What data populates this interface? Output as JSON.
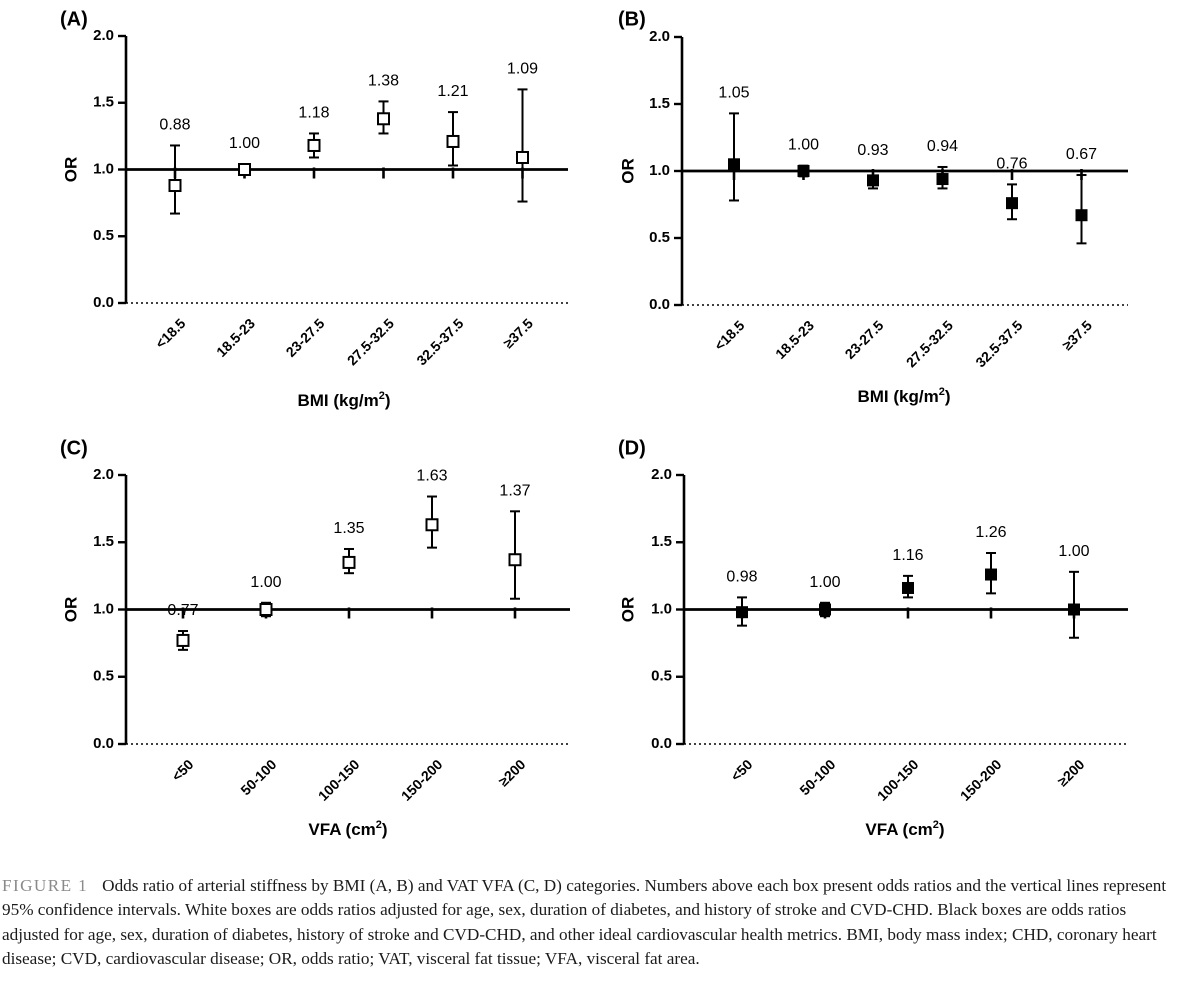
{
  "chart_data": [
    {
      "panel": "(A)",
      "type": "scatter",
      "marker": "open-square",
      "ylabel": "OR",
      "xlabel": "BMI (kg/m",
      "xlabel_sup": "2",
      "xlabel_suffix": ")",
      "categories": [
        "<18.5",
        "18.5-23",
        "23-27.5",
        "27.5-32.5",
        "32.5-37.5",
        "≥37.5"
      ],
      "values": [
        0.88,
        1.0,
        1.18,
        1.38,
        1.21,
        1.09
      ],
      "value_labels": [
        "0.88",
        "1.00",
        "1.18",
        "1.38",
        "1.21",
        "1.09"
      ],
      "ci_low": [
        0.67,
        0.96,
        1.09,
        1.27,
        1.03,
        0.76
      ],
      "ci_high": [
        1.18,
        1.04,
        1.27,
        1.51,
        1.43,
        1.6
      ],
      "ylim": [
        0,
        2
      ],
      "yticks": [
        "0.0",
        "0.5",
        "1.0",
        "1.5",
        "2.0"
      ],
      "reference_line": 1.0
    },
    {
      "panel": "(B)",
      "type": "scatter",
      "marker": "filled-square",
      "ylabel": "OR",
      "xlabel": "BMI (kg/m",
      "xlabel_sup": "2",
      "xlabel_suffix": ")",
      "categories": [
        "<18.5",
        "18.5-23",
        "23-27.5",
        "27.5-32.5",
        "32.5-37.5",
        "≥37.5"
      ],
      "values": [
        1.05,
        1.0,
        0.93,
        0.94,
        0.76,
        0.67
      ],
      "value_labels": [
        "1.05",
        "1.00",
        "0.93",
        "0.94",
        "0.76",
        "0.67"
      ],
      "ci_low": [
        0.78,
        0.96,
        0.87,
        0.87,
        0.64,
        0.46
      ],
      "ci_high": [
        1.43,
        1.04,
        1.0,
        1.03,
        0.9,
        0.97
      ],
      "ylim": [
        0,
        2
      ],
      "yticks": [
        "0.0",
        "0.5",
        "1.0",
        "1.5",
        "2.0"
      ],
      "reference_line": 1.0
    },
    {
      "panel": "(C)",
      "type": "scatter",
      "marker": "open-square",
      "ylabel": "OR",
      "xlabel": "VFA (cm",
      "xlabel_sup": "2",
      "xlabel_suffix": ")",
      "categories": [
        "<50",
        "50-100",
        "100-150",
        "150-200",
        "≥200"
      ],
      "values": [
        0.77,
        1.0,
        1.35,
        1.63,
        1.37
      ],
      "value_labels": [
        "0.77",
        "1.00",
        "1.35",
        "1.63",
        "1.37"
      ],
      "ci_low": [
        0.7,
        0.95,
        1.27,
        1.46,
        1.08
      ],
      "ci_high": [
        0.84,
        1.05,
        1.45,
        1.84,
        1.73
      ],
      "ylim": [
        0,
        2
      ],
      "yticks": [
        "0.0",
        "0.5",
        "1.0",
        "1.5",
        "2.0"
      ],
      "reference_line": 1.0
    },
    {
      "panel": "(D)",
      "type": "scatter",
      "marker": "filled-square",
      "ylabel": "OR",
      "xlabel": "VFA (cm",
      "xlabel_sup": "2",
      "xlabel_suffix": ")",
      "categories": [
        "<50",
        "50-100",
        "100-150",
        "150-200",
        "≥200"
      ],
      "values": [
        0.98,
        1.0,
        1.16,
        1.26,
        1.0
      ],
      "value_labels": [
        "0.98",
        "1.00",
        "1.16",
        "1.26",
        "1.00"
      ],
      "ci_low": [
        0.88,
        0.95,
        1.09,
        1.12,
        0.79
      ],
      "ci_high": [
        1.09,
        1.05,
        1.25,
        1.42,
        1.28
      ],
      "ylim": [
        0,
        2
      ],
      "yticks": [
        "0.0",
        "0.5",
        "1.0",
        "1.5",
        "2.0"
      ],
      "reference_line": 1.0
    }
  ],
  "caption": {
    "label": "FIGURE 1",
    "text": "Odds ratio of arterial stiffness by BMI (A, B) and VAT VFA (C, D) categories. Numbers above each box present odds ratios and the vertical lines represent 95% confidence intervals. White boxes are odds ratios adjusted for age, sex, duration of diabetes, and history of stroke and CVD-CHD. Black boxes are odds ratios adjusted for age, sex, duration of diabetes, history of stroke and CVD-CHD, and other ideal cardiovascular health metrics. BMI, body mass index; CHD, coronary heart disease; CVD, cardiovascular disease; OR, odds ratio; VAT, visceral fat tissue; VFA, visceral fat area."
  }
}
